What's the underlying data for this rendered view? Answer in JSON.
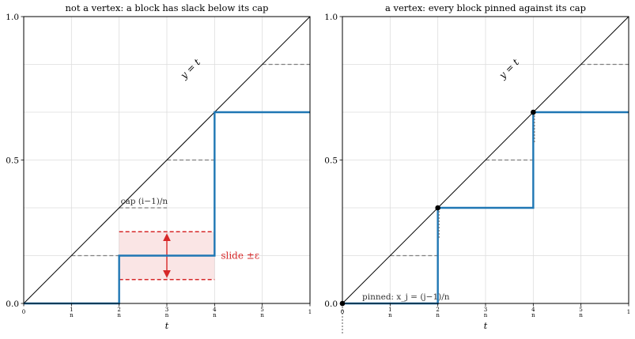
{
  "chart_data": [
    {
      "type": "line",
      "title": "not a vertex: a block has slack below its cap",
      "xlabel": "t",
      "ylabel": "",
      "xlim": [
        0,
        1
      ],
      "ylim": [
        0,
        1
      ],
      "grid": true,
      "x_ticks": [
        "0",
        "1/n",
        "2/n",
        "3/n",
        "4/n",
        "5/n",
        "1"
      ],
      "y_ticks": [
        "0.0",
        "0.5",
        "1.0"
      ],
      "diagonal_label": "y = t",
      "series": [
        {
          "x": [
            0,
            0.3333,
            0.3333,
            0.6667,
            0.6667,
            1
          ],
          "y": [
            0,
            0,
            0.1667,
            0.1667,
            0.6667,
            0.6667
          ]
        }
      ],
      "caps": [
        {
          "x0": 0.1667,
          "x1": 0.3333,
          "y": 0.1667
        },
        {
          "x0": 0.3333,
          "x1": 0.5,
          "y": 0.3333
        },
        {
          "x0": 0.5,
          "x1": 0.6667,
          "y": 0.5
        },
        {
          "x0": 0.8333,
          "x1": 1.0,
          "y": 0.8333
        }
      ],
      "cap_label": "cap (i−1)/n",
      "slack_band": {
        "x0": 0.3333,
        "x1": 0.6667,
        "y0": 0.0833,
        "y1": 0.25
      },
      "slide_label": "slide ±ε",
      "colors": {
        "staircase": "#1f77b4",
        "diagonal": "#000000",
        "cap": "#808080",
        "slack": "#d62728",
        "grid": "#dddddd"
      }
    },
    {
      "type": "line",
      "title": "a vertex: every block pinned against its cap",
      "xlabel": "t",
      "ylabel": "",
      "xlim": [
        0,
        1
      ],
      "ylim": [
        0,
        1
      ],
      "grid": true,
      "x_ticks": [
        "0",
        "1/n",
        "2/n",
        "3/n",
        "4/n",
        "5/n",
        "1"
      ],
      "y_ticks": [
        "0.0",
        "0.5",
        "1.0"
      ],
      "diagonal_label": "y = t",
      "series": [
        {
          "x": [
            0,
            0.3333,
            0.3333,
            0.6667,
            0.6667,
            1
          ],
          "y": [
            0,
            0,
            0.3333,
            0.3333,
            0.6667,
            0.6667
          ]
        }
      ],
      "caps": [
        {
          "x0": 0.1667,
          "x1": 0.3333,
          "y": 0.1667
        },
        {
          "x0": 0.5,
          "x1": 0.6667,
          "y": 0.5
        },
        {
          "x0": 0.8333,
          "x1": 1.0,
          "y": 0.8333
        }
      ],
      "pinned_points": [
        {
          "x": 0,
          "y": 0
        },
        {
          "x": 0.3333,
          "y": 0.3333
        },
        {
          "x": 0.6667,
          "y": 0.6667
        }
      ],
      "pinned_label": "pinned: x_j = (j−1)/n",
      "colors": {
        "staircase": "#1f77b4",
        "diagonal": "#000000",
        "cap": "#808080",
        "point": "#000000",
        "grid": "#dddddd"
      }
    }
  ]
}
